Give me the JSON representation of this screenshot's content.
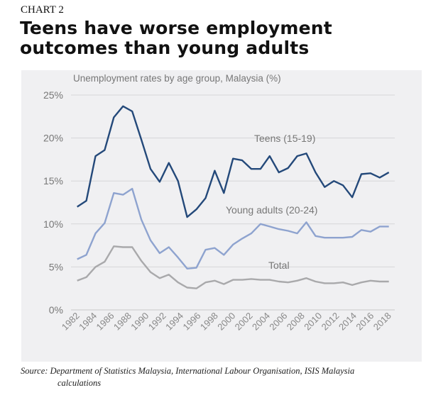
{
  "header": {
    "kicker": "CHART 2",
    "title": "Teens have worse employment outcomes than young adults"
  },
  "footer": {
    "source_line1": "Source: Department of Statistics Malaysia, International Labour Organisation, ISIS Malaysia",
    "source_line2": "calculations"
  },
  "chart_data": {
    "type": "line",
    "title": "Unemployment rates by age group, Malaysia (%)",
    "xlabel": "",
    "ylabel": "",
    "ylim": [
      0,
      25
    ],
    "yticks": [
      "0%",
      "5%",
      "10%",
      "15%",
      "20%",
      "25%"
    ],
    "xtick_labels": [
      "1982",
      "1984",
      "1986",
      "1988",
      "1990",
      "1992",
      "1994",
      "1996",
      "1998",
      "2000",
      "2002",
      "2004",
      "2006",
      "2008",
      "2010",
      "2012",
      "2014",
      "2016",
      "2018"
    ],
    "grid": true,
    "legend": "inline labels",
    "background": "#f0f0f2",
    "x_range": [
      1982,
      2018
    ],
    "series": [
      {
        "name": "Teens (15-19)",
        "color": "#24497a",
        "values": [
          12.0,
          12.7,
          17.9,
          18.6,
          22.4,
          23.7,
          23.1,
          19.8,
          16.4,
          14.9,
          17.1,
          15.0,
          10.8,
          11.7,
          13.0,
          16.2,
          13.6,
          17.6,
          17.4,
          16.4,
          16.4,
          17.9,
          16.0,
          16.5,
          17.9,
          18.2,
          16.0,
          14.3,
          15.0,
          14.5,
          13.1,
          15.8,
          15.9,
          15.4,
          16.0
        ]
      },
      {
        "name": "Young adults (20-24)",
        "color": "#8ea3cf",
        "values": [
          5.9,
          6.4,
          8.9,
          10.1,
          13.6,
          13.4,
          14.1,
          10.5,
          8.1,
          6.6,
          7.3,
          6.1,
          4.8,
          4.9,
          7.0,
          7.2,
          6.4,
          7.6,
          8.3,
          8.9,
          10.0,
          9.7,
          9.4,
          9.2,
          8.9,
          10.2,
          8.6,
          8.4,
          8.4,
          8.4,
          8.5,
          9.3,
          9.1,
          9.7,
          9.7
        ]
      },
      {
        "name": "Total",
        "color": "#a9a9ab",
        "values": [
          3.4,
          3.8,
          5.0,
          5.6,
          7.4,
          7.3,
          7.3,
          5.7,
          4.4,
          3.7,
          4.1,
          3.2,
          2.6,
          2.5,
          3.2,
          3.4,
          3.0,
          3.5,
          3.5,
          3.6,
          3.5,
          3.5,
          3.3,
          3.2,
          3.4,
          3.7,
          3.3,
          3.1,
          3.1,
          3.2,
          2.9,
          3.2,
          3.4,
          3.3,
          3.3
        ]
      }
    ]
  }
}
